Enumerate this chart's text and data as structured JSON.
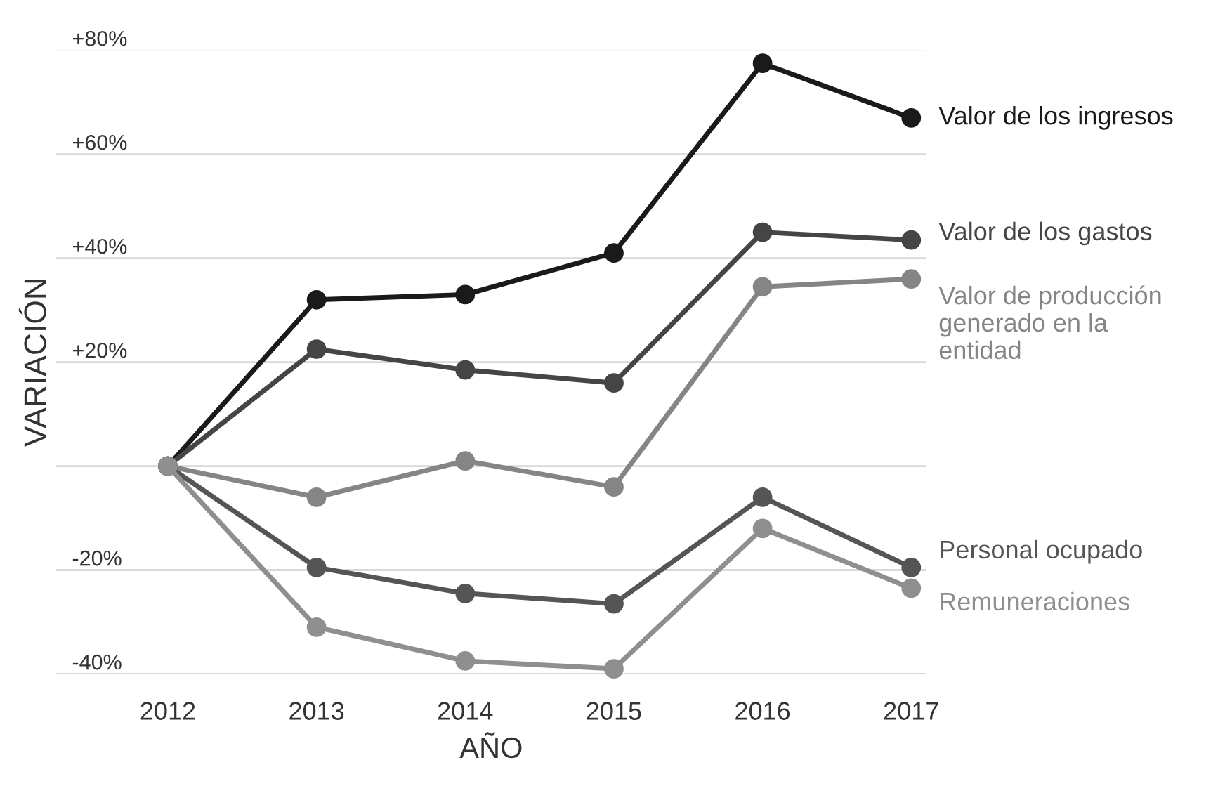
{
  "chart_data": {
    "type": "line",
    "xlabel": "AÑO",
    "ylabel": "VARIACIÓN",
    "x": [
      2012,
      2013,
      2014,
      2015,
      2016,
      2017
    ],
    "xlim": [
      2011.25,
      2017.1
    ],
    "xticks": [
      2012,
      2013,
      2014,
      2015,
      2016,
      2017
    ],
    "ylim": [
      -40,
      80
    ],
    "yticks": [
      {
        "value": -40,
        "label": "-40%"
      },
      {
        "value": -20,
        "label": "-20%"
      },
      {
        "value": 0,
        "label": null
      },
      {
        "value": 20,
        "label": "+20%"
      },
      {
        "value": 40,
        "label": "+40%"
      },
      {
        "value": 60,
        "label": "+60%"
      },
      {
        "value": 80,
        "label": "+80%"
      }
    ],
    "grid": "y",
    "legend": false,
    "marker": "circle",
    "line_style": "solid",
    "series": [
      {
        "name": "Valor de los ingresos",
        "color": "#1a1a1a",
        "values": [
          0,
          32,
          33,
          41,
          77.5,
          67
        ]
      },
      {
        "name": "Valor de los gastos",
        "color": "#454545",
        "values": [
          0,
          22.5,
          18.5,
          16,
          45,
          43.5
        ]
      },
      {
        "name": "Valor de producción\ngenerado en la\nentidad",
        "color": "#858585",
        "values": [
          0,
          -6,
          1,
          -4,
          34.5,
          36
        ]
      },
      {
        "name": "Personal ocupado",
        "color": "#555555",
        "values": [
          0,
          -19.5,
          -24.5,
          -26.5,
          -6,
          -19.5
        ]
      },
      {
        "name": "Remuneraciones",
        "color": "#8f8f8f",
        "values": [
          0,
          -31,
          -37.5,
          -39,
          -12,
          -23.5
        ]
      }
    ]
  }
}
